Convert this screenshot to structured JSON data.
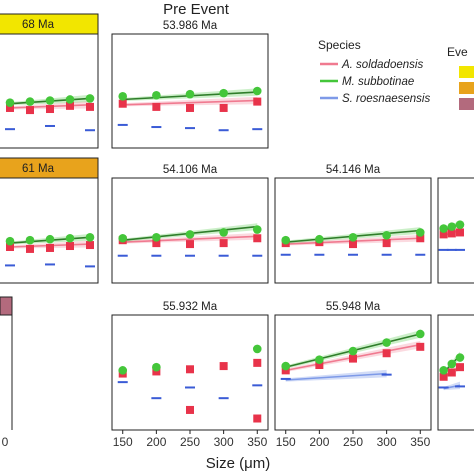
{
  "figure": {
    "title": "Pre Event",
    "xlabel": "Size (μm)",
    "legend": {
      "title": "Species",
      "entries": [
        "A. soldadoensis",
        "M. subbotinae",
        "S. roesnaesensis"
      ],
      "event_title": "Eve"
    },
    "x_ticks": [
      "150",
      "200",
      "250",
      "300",
      "350"
    ],
    "partial_x_tick": "0",
    "colors": {
      "a_soldadoensis": "#e8334a",
      "a_soldadoensis_line": "#f07a90",
      "m_subbotinae": "#44c63a",
      "m_subbotinae_line": "#2f7d2a",
      "s_roesnaesensis": "#3a5bd6",
      "s_roesnaesensis_line": "#7e9ae8",
      "event_yellow": "#f2e600",
      "event_orange": "#e8a31c",
      "event_mauve": "#b36a7d"
    }
  },
  "chart_data": [
    {
      "type": "scatter",
      "title": "68 Ma",
      "strip_color": "#f2e600",
      "xlim": [
        130,
        360
      ],
      "series": [
        {
          "name": "M. subbotinae",
          "x": [
            150,
            200,
            250,
            300,
            350
          ],
          "y": [
            0.39,
            0.4,
            0.41,
            0.42,
            0.43
          ],
          "trend": [
            0.38,
            0.43
          ]
        },
        {
          "name": "A. soldadoensis",
          "x": [
            150,
            200,
            250,
            300,
            350
          ],
          "y": [
            0.34,
            0.32,
            0.33,
            0.36,
            0.35
          ],
          "trend": [
            0.34,
            0.37
          ]
        },
        {
          "name": "S. roesnaesensis",
          "x": [
            150,
            250,
            350
          ],
          "y": [
            0.14,
            0.17,
            0.13
          ]
        }
      ]
    },
    {
      "type": "scatter",
      "title": "53.986 Ma",
      "xlim": [
        140,
        360
      ],
      "series": [
        {
          "name": "M. subbotinae",
          "x": [
            150,
            200,
            250,
            300,
            350
          ],
          "y": [
            0.45,
            0.46,
            0.47,
            0.48,
            0.5
          ],
          "trend": [
            0.42,
            0.49
          ]
        },
        {
          "name": "A. soldadoensis",
          "x": [
            150,
            200,
            250,
            300,
            350
          ],
          "y": [
            0.38,
            0.35,
            0.34,
            0.34,
            0.4
          ],
          "trend": [
            0.37,
            0.41
          ]
        },
        {
          "name": "S. roesnaesensis",
          "x": [
            150,
            200,
            250,
            300,
            350
          ],
          "y": [
            0.18,
            0.16,
            0.15,
            0.13,
            0.14
          ]
        }
      ]
    },
    {
      "type": "scatter",
      "title": "61 Ma",
      "strip_color": "#e8a31c",
      "xlim": [
        130,
        360
      ],
      "series": [
        {
          "name": "M. subbotinae",
          "x": [
            150,
            200,
            250,
            300,
            350
          ],
          "y": [
            0.39,
            0.4,
            0.41,
            0.42,
            0.43
          ],
          "trend": [
            0.37,
            0.43
          ]
        },
        {
          "name": "A. soldadoensis",
          "x": [
            150,
            200,
            250,
            300,
            350
          ],
          "y": [
            0.33,
            0.31,
            0.32,
            0.34,
            0.35
          ],
          "trend": [
            0.33,
            0.36
          ]
        },
        {
          "name": "S. roesnaesensis",
          "x": [
            150,
            250,
            350
          ],
          "y": [
            0.14,
            0.15,
            0.13
          ]
        }
      ]
    },
    {
      "type": "scatter",
      "title": "54.106 Ma",
      "xlim": [
        140,
        360
      ],
      "series": [
        {
          "name": "M. subbotinae",
          "x": [
            150,
            200,
            250,
            300,
            350
          ],
          "y": [
            0.42,
            0.43,
            0.46,
            0.48,
            0.51
          ],
          "trend": [
            0.4,
            0.54
          ]
        },
        {
          "name": "A. soldadoensis",
          "x": [
            150,
            200,
            250,
            300,
            350
          ],
          "y": [
            0.4,
            0.37,
            0.36,
            0.37,
            0.42
          ],
          "trend": [
            0.38,
            0.44
          ]
        },
        {
          "name": "S. roesnaesensis",
          "x": [
            150,
            200,
            250,
            300,
            350
          ],
          "y": [
            0.24,
            0.24,
            0.24,
            0.24,
            0.24
          ]
        }
      ]
    },
    {
      "type": "scatter",
      "title": "54.146 Ma",
      "xlim": [
        140,
        360
      ],
      "series": [
        {
          "name": "M. subbotinae",
          "x": [
            150,
            200,
            250,
            300,
            350
          ],
          "y": [
            0.4,
            0.41,
            0.43,
            0.45,
            0.48
          ],
          "trend": [
            0.38,
            0.5
          ]
        },
        {
          "name": "A. soldadoensis",
          "x": [
            150,
            200,
            250,
            300,
            350
          ],
          "y": [
            0.37,
            0.38,
            0.36,
            0.37,
            0.42
          ],
          "trend": [
            0.36,
            0.42
          ]
        },
        {
          "name": "S. roesnaesensis",
          "x": [
            150,
            200,
            250,
            300,
            350
          ],
          "y": [
            0.25,
            0.25,
            0.25,
            0.25,
            0.25
          ]
        }
      ]
    },
    {
      "type": "scatter",
      "title": "",
      "xlim": [
        140,
        360
      ],
      "series": [
        {
          "name": "M. subbotinae",
          "x": [
            150,
            200,
            250
          ],
          "y": [
            0.52,
            0.54,
            0.56
          ],
          "trend": [
            0.5,
            0.57
          ]
        },
        {
          "name": "A. soldadoensis",
          "x": [
            150,
            200,
            250
          ],
          "y": [
            0.46,
            0.47,
            0.48
          ],
          "trend": [
            0.45,
            0.5
          ]
        },
        {
          "name": "S. roesnaesensis",
          "x": [
            150,
            200,
            250
          ],
          "y": [
            0.3,
            0.3,
            0.3
          ]
        }
      ]
    },
    {
      "type": "scatter",
      "title": "55.932 Ma",
      "xlim": [
        140,
        360
      ],
      "series": [
        {
          "name": "M. subbotinae",
          "x": [
            150,
            200,
            350
          ],
          "y": [
            0.52,
            0.55,
            0.72
          ]
        },
        {
          "name": "A. soldadoensis",
          "x": [
            150,
            200,
            250,
            300,
            350,
            350
          ],
          "y": [
            0.49,
            0.51,
            0.53,
            0.56,
            0.59,
            0.07
          ]
        },
        {
          "name": "A. soldadoensis",
          "x": [
            250
          ],
          "y": [
            0.15
          ]
        },
        {
          "name": "S. roesnaesensis",
          "x": [
            150,
            200,
            250,
            300,
            350
          ],
          "y": [
            0.41,
            0.26,
            0.36,
            0.26,
            0.38
          ]
        }
      ]
    },
    {
      "type": "scatter",
      "title": "55.948 Ma",
      "xlim": [
        140,
        360
      ],
      "series": [
        {
          "name": "M. subbotinae",
          "x": [
            150,
            200,
            250,
            300,
            350
          ],
          "y": [
            0.56,
            0.62,
            0.7,
            0.78,
            0.86
          ],
          "trend": [
            0.55,
            0.86
          ]
        },
        {
          "name": "A. soldadoensis",
          "x": [
            150,
            200,
            250,
            300,
            350
          ],
          "y": [
            0.52,
            0.57,
            0.63,
            0.68,
            0.74
          ],
          "trend": [
            0.52,
            0.76
          ]
        },
        {
          "name": "S. roesnaesensis",
          "x": [
            150,
            300
          ],
          "y": [
            0.44,
            0.48
          ],
          "trend": [
            0.43,
            0.49
          ]
        }
      ]
    },
    {
      "type": "scatter",
      "title": "",
      "xlim": [
        140,
        360
      ],
      "series": [
        {
          "name": "M. subbotinae",
          "x": [
            150,
            200,
            250
          ],
          "y": [
            0.52,
            0.58,
            0.64
          ],
          "trend": [
            0.5,
            0.66
          ]
        },
        {
          "name": "A. soldadoensis",
          "x": [
            150,
            200,
            250
          ],
          "y": [
            0.46,
            0.5,
            0.55
          ],
          "trend": [
            0.45,
            0.56
          ]
        },
        {
          "name": "S. roesnaesensis",
          "x": [
            150,
            250
          ],
          "y": [
            0.36,
            0.37
          ],
          "trend": [
            0.35,
            0.38
          ]
        }
      ]
    }
  ]
}
